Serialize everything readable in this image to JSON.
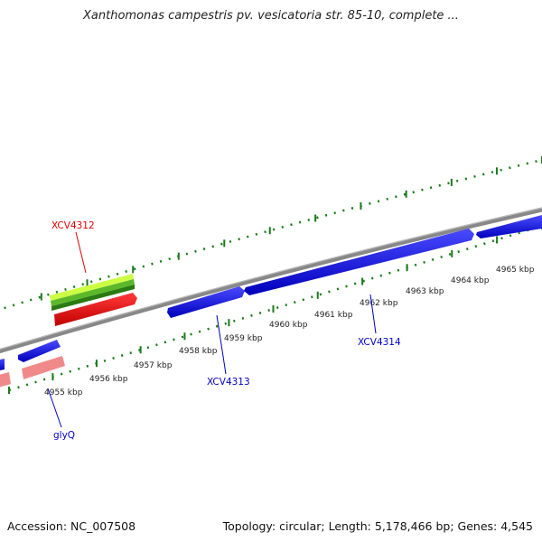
{
  "title": "Xanthomonas campestris pv. vesicatoria str. 85-10, complete ...",
  "footer": {
    "accession": "Accession: NC_007508",
    "topology": "Topology: circular; Length: 5,178,466 bp; Genes: 4,545"
  },
  "scale_ticks": [
    "4955 kbp",
    "4956 kbp",
    "4957 kbp",
    "4958 kbp",
    "4959 kbp",
    "4960 kbp",
    "4961 kbp",
    "4962 kbp",
    "4963 kbp",
    "4964 kbp",
    "4965 kbp"
  ],
  "gene_labels": [
    {
      "text": "XCV4312",
      "color": "#e00000"
    },
    {
      "text": "XCV4313",
      "color": "#0000cc"
    },
    {
      "text": "XCV4314",
      "color": "#0000cc"
    },
    {
      "text": "glyQ",
      "color": "#0000cc"
    }
  ],
  "colors": {
    "forward_cds": "#0000ee",
    "highlight_gene": "#ee0000",
    "pink_gene": "#f08080",
    "ruler": "#1a7a1a",
    "backbone": "#888888",
    "lime_track": "#9be33a"
  }
}
